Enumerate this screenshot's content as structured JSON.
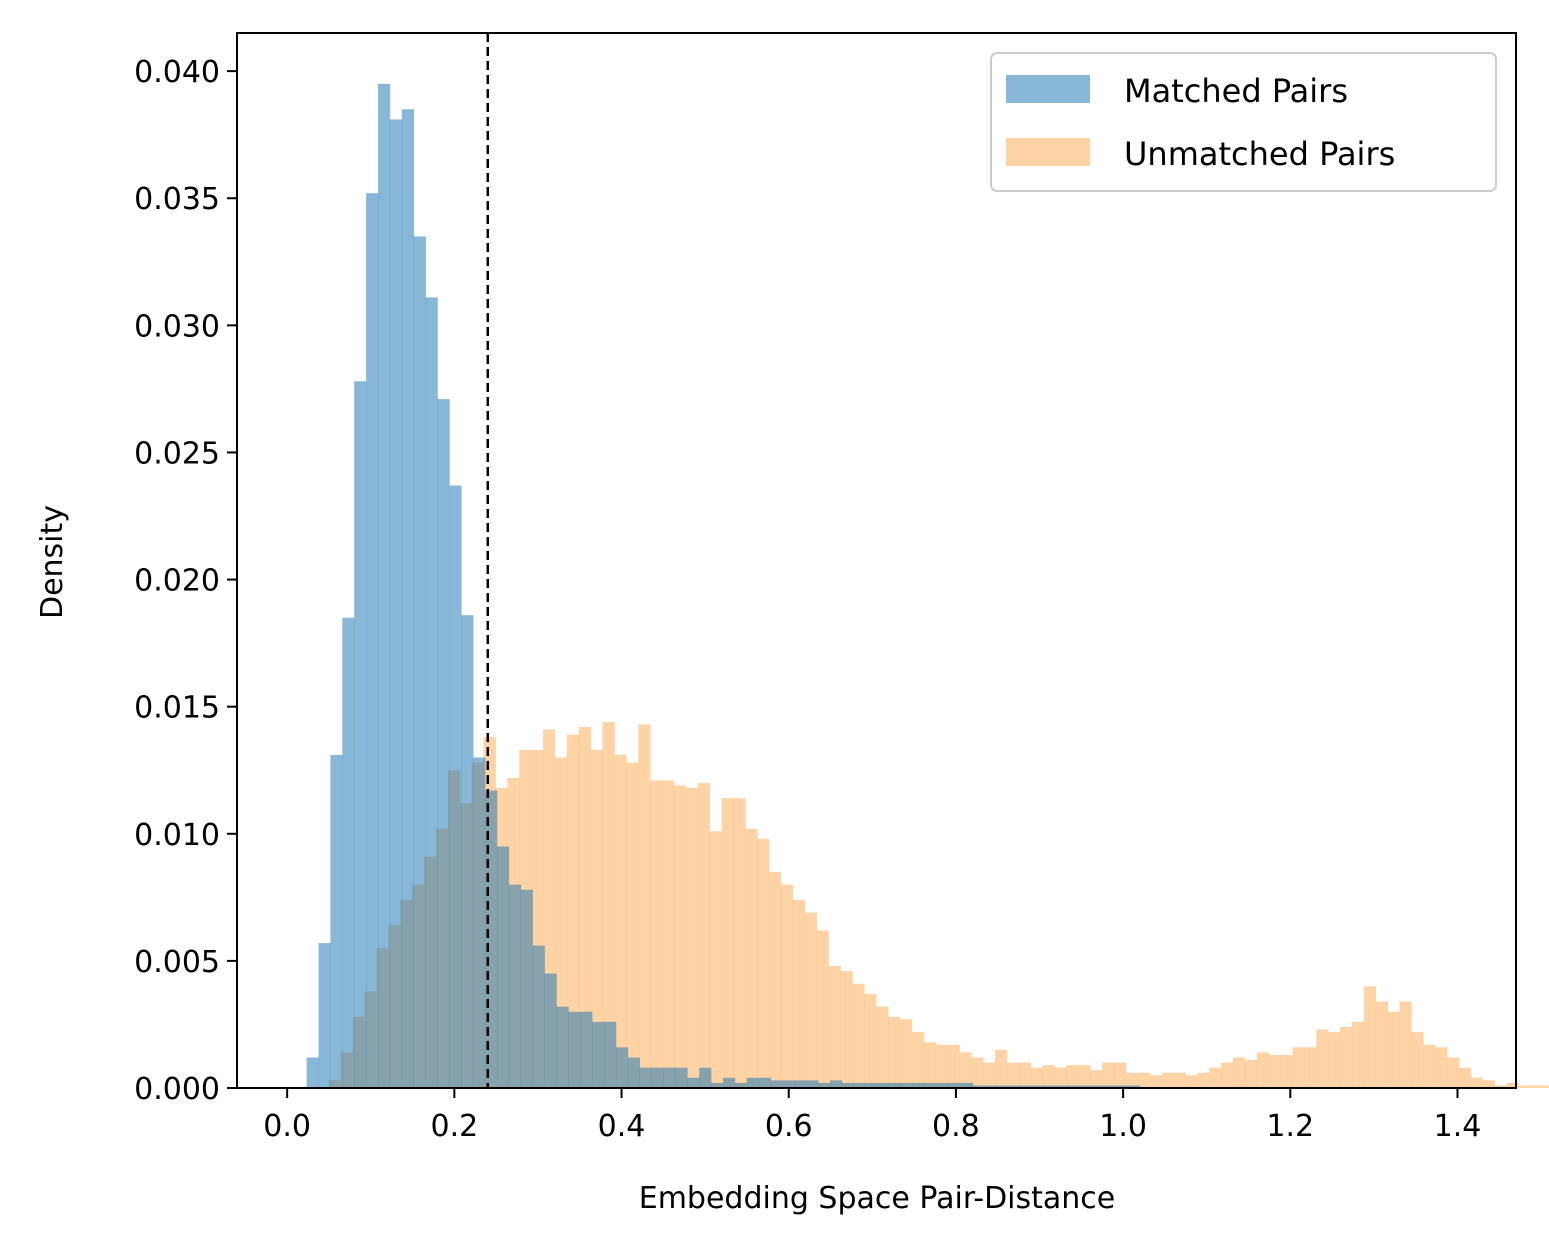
{
  "chart_data": {
    "type": "bar",
    "subtype": "histogram",
    "title": "",
    "xlabel": "Embedding Space Pair-Distance",
    "ylabel": "Density",
    "xlim": [
      -0.06,
      1.47
    ],
    "ylim": [
      0,
      0.0415
    ],
    "x_ticks": [
      0.0,
      0.2,
      0.4,
      0.6,
      0.8,
      1.0,
      1.2,
      1.4
    ],
    "x_tick_labels": [
      "0.0",
      "0.2",
      "0.4",
      "0.6",
      "0.8",
      "1.0",
      "1.2",
      "1.4"
    ],
    "y_ticks": [
      0.0,
      0.005,
      0.01,
      0.015,
      0.02,
      0.025,
      0.03,
      0.035,
      0.04
    ],
    "y_tick_labels": [
      "0.000",
      "0.005",
      "0.010",
      "0.015",
      "0.020",
      "0.025",
      "0.030",
      "0.035",
      "0.040"
    ],
    "grid": false,
    "legend_placement": "top-right",
    "threshold": {
      "x": 0.24,
      "style": "dashed",
      "color": "#000000"
    },
    "series": [
      {
        "name": "Matched Pairs",
        "color": "#1f77b4",
        "opacity": 0.53,
        "bin_start": 0.0233,
        "bin_width": 0.01423,
        "values": [
          0.0012,
          0.0057,
          0.0131,
          0.0185,
          0.0278,
          0.0352,
          0.0395,
          0.0381,
          0.0385,
          0.0335,
          0.0311,
          0.0271,
          0.0237,
          0.0186,
          0.013,
          0.0117,
          0.0095,
          0.008,
          0.0078,
          0.0056,
          0.0045,
          0.0032,
          0.003,
          0.003,
          0.0026,
          0.0026,
          0.0016,
          0.0012,
          0.0008,
          0.0008,
          0.0008,
          0.0008,
          0.0004,
          0.0008,
          0.0002,
          0.0004,
          0.0002,
          0.0004,
          0.0004,
          0.0003,
          0.0003,
          0.0003,
          0.0003,
          0.0002,
          0.0003,
          0.0002,
          0.0002,
          0.0002,
          0.0002,
          0.0002,
          0.0002,
          0.0002,
          0.0002,
          0.0002,
          0.0002,
          0.0002,
          0.0001,
          0.0001,
          0.0001,
          0.0001,
          0.0001,
          0.0001,
          0.0001,
          0.0001,
          0.0001,
          0.0001,
          0.0001,
          0.0001,
          0.0001,
          0.0001
        ]
      },
      {
        "name": "Unmatched Pairs",
        "color": "#fdb56a",
        "opacity": 0.6,
        "bin_start": 0.05,
        "bin_width": 0.01423,
        "values": [
          0.0003,
          0.0014,
          0.0028,
          0.0038,
          0.0055,
          0.0064,
          0.0074,
          0.008,
          0.0091,
          0.0102,
          0.0125,
          0.0112,
          0.0128,
          0.0138,
          0.0118,
          0.0122,
          0.0133,
          0.0133,
          0.0141,
          0.013,
          0.0139,
          0.0142,
          0.0133,
          0.0144,
          0.0131,
          0.0128,
          0.0143,
          0.0121,
          0.0121,
          0.0119,
          0.0118,
          0.012,
          0.0101,
          0.0114,
          0.0114,
          0.0102,
          0.0098,
          0.0085,
          0.008,
          0.0074,
          0.0069,
          0.0062,
          0.0048,
          0.0046,
          0.0041,
          0.0037,
          0.0032,
          0.0028,
          0.0027,
          0.0022,
          0.0018,
          0.0017,
          0.0017,
          0.0014,
          0.0012,
          0.001,
          0.0015,
          0.001,
          0.001,
          0.0008,
          0.0009,
          0.0008,
          0.0009,
          0.0009,
          0.0007,
          0.001,
          0.001,
          0.0006,
          0.0006,
          0.0005,
          0.0006,
          0.0006,
          0.0005,
          0.0006,
          0.0008,
          0.001,
          0.0012,
          0.0011,
          0.0014,
          0.0013,
          0.0013,
          0.0016,
          0.0016,
          0.0023,
          0.0022,
          0.0024,
          0.0026,
          0.004,
          0.0034,
          0.003,
          0.0034,
          0.0022,
          0.0017,
          0.0016,
          0.0012,
          0.0008,
          0.0004,
          0.0003,
          0.0001,
          0.0002,
          0.0001,
          0.0001,
          0.0001,
          0.0001
        ]
      }
    ]
  }
}
